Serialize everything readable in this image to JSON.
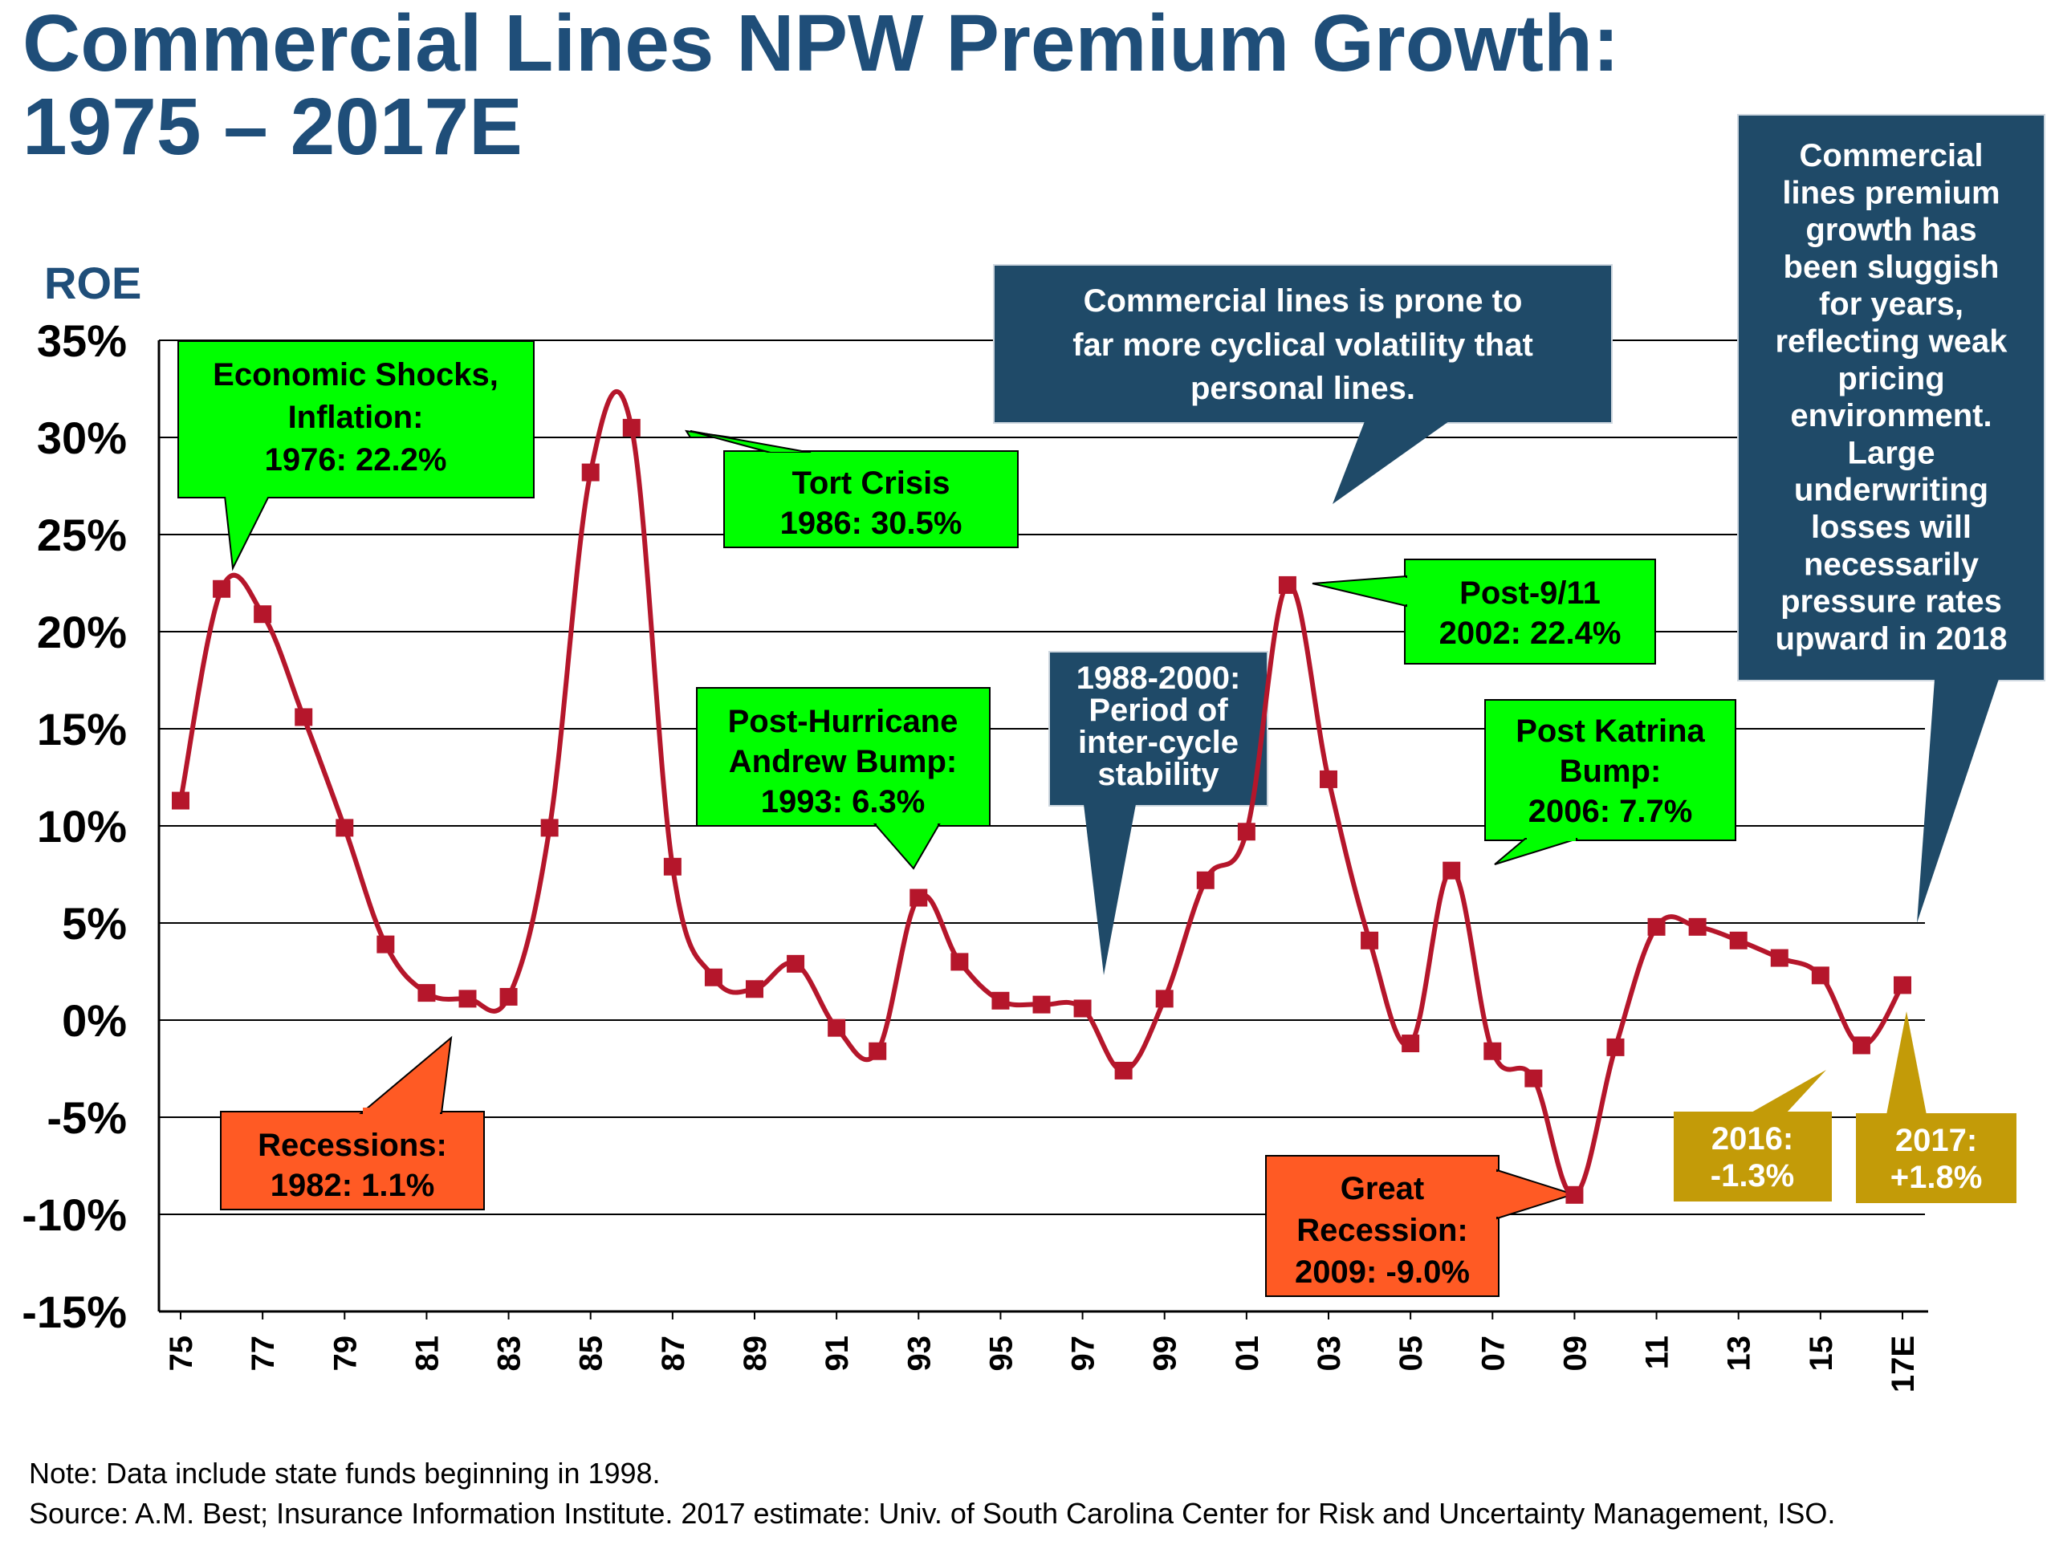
{
  "title_line1": "Commercial Lines NPW Premium Growth:",
  "title_line2": "1975 – 2017E",
  "colors": {
    "title": "#1f4e79",
    "line": "#b5162b",
    "green_box": "#00ff00",
    "red_box": "#ff5a24",
    "navy_box": "#1f4a68",
    "gold_box": "#c39b08"
  },
  "callouts": {
    "econ_shocks": [
      "Economic Shocks,",
      "Inflation:",
      "1976: 22.2%"
    ],
    "tort_crisis": [
      "Tort Crisis",
      "1986: 30.5%"
    ],
    "cyclical": [
      "Commercial lines is prone to",
      "far more cyclical volatility that",
      "personal lines."
    ],
    "stability": [
      "1988-2000:",
      "Period of",
      "inter-cycle",
      "stability"
    ],
    "post_911": [
      "Post-9/11",
      "2002: 22.4%"
    ],
    "andrew": [
      "Post-Hurricane",
      "Andrew Bump:",
      "1993: 6.3%"
    ],
    "katrina": [
      "Post Katrina",
      "Bump:",
      "2006: 7.7%"
    ],
    "sluggish": [
      "Commercial",
      "lines premium",
      "growth has",
      "been sluggish",
      "for years,",
      "reflecting weak",
      "pricing",
      "environment.",
      "Large",
      "underwriting",
      "losses will",
      "necessarily",
      "pressure rates",
      "upward in 2018"
    ],
    "recessions": [
      "Recessions:",
      "1982: 1.1%"
    ],
    "great_recession": [
      "Great",
      "Recession:",
      "2009: -9.0%"
    ],
    "y2016": [
      "2016:",
      "-1.3%"
    ],
    "y2017": [
      "2017:",
      "+1.8%"
    ]
  },
  "notes": {
    "note": "Note: Data include state funds beginning in 1998.",
    "source": "Source:  A.M. Best; Insurance Information Institute. 2017 estimate: Univ. of South Carolina Center for Risk and Uncertainty Management, ISO."
  },
  "chart_data": {
    "type": "line",
    "title": "Commercial Lines NPW Premium Growth: 1975 – 2017E",
    "ylabel": "ROE",
    "xlabel": "",
    "ylim": [
      -15,
      35
    ],
    "yticks": [
      35,
      30,
      25,
      20,
      15,
      10,
      5,
      0,
      -5,
      -10,
      -15
    ],
    "ytick_labels": [
      "35%",
      "30%",
      "25%",
      "20%",
      "15%",
      "10%",
      "5%",
      "0%",
      "-5%",
      "-10%",
      "-15%"
    ],
    "x": [
      1975,
      1976,
      1977,
      1978,
      1979,
      1980,
      1981,
      1982,
      1983,
      1984,
      1985,
      1986,
      1987,
      1988,
      1989,
      1990,
      1991,
      1992,
      1993,
      1994,
      1995,
      1996,
      1997,
      1998,
      1999,
      2000,
      2001,
      2002,
      2003,
      2004,
      2005,
      2006,
      2007,
      2008,
      2009,
      2010,
      2011,
      2012,
      2013,
      2014,
      2015,
      2016,
      2017
    ],
    "xtick_labels": [
      "75",
      "77",
      "79",
      "81",
      "83",
      "85",
      "87",
      "89",
      "91",
      "93",
      "95",
      "97",
      "99",
      "01",
      "03",
      "05",
      "07",
      "09",
      "11",
      "13",
      "15",
      "17E"
    ],
    "grid": true,
    "series": [
      {
        "values": [
          11.3,
          22.2,
          20.9,
          15.6,
          9.9,
          3.9,
          1.4,
          1.1,
          1.2,
          9.9,
          28.2,
          30.5,
          7.9,
          2.2,
          1.6,
          2.9,
          -0.4,
          -1.6,
          6.3,
          3.0,
          1.0,
          0.8,
          0.6,
          -2.6,
          1.1,
          7.2,
          9.7,
          22.4,
          12.4,
          4.1,
          -1.2,
          7.7,
          -1.6,
          -3.0,
          -9.0,
          -1.4,
          4.8,
          4.8,
          4.1,
          3.2,
          2.3,
          -1.3,
          1.8
        ]
      }
    ]
  }
}
